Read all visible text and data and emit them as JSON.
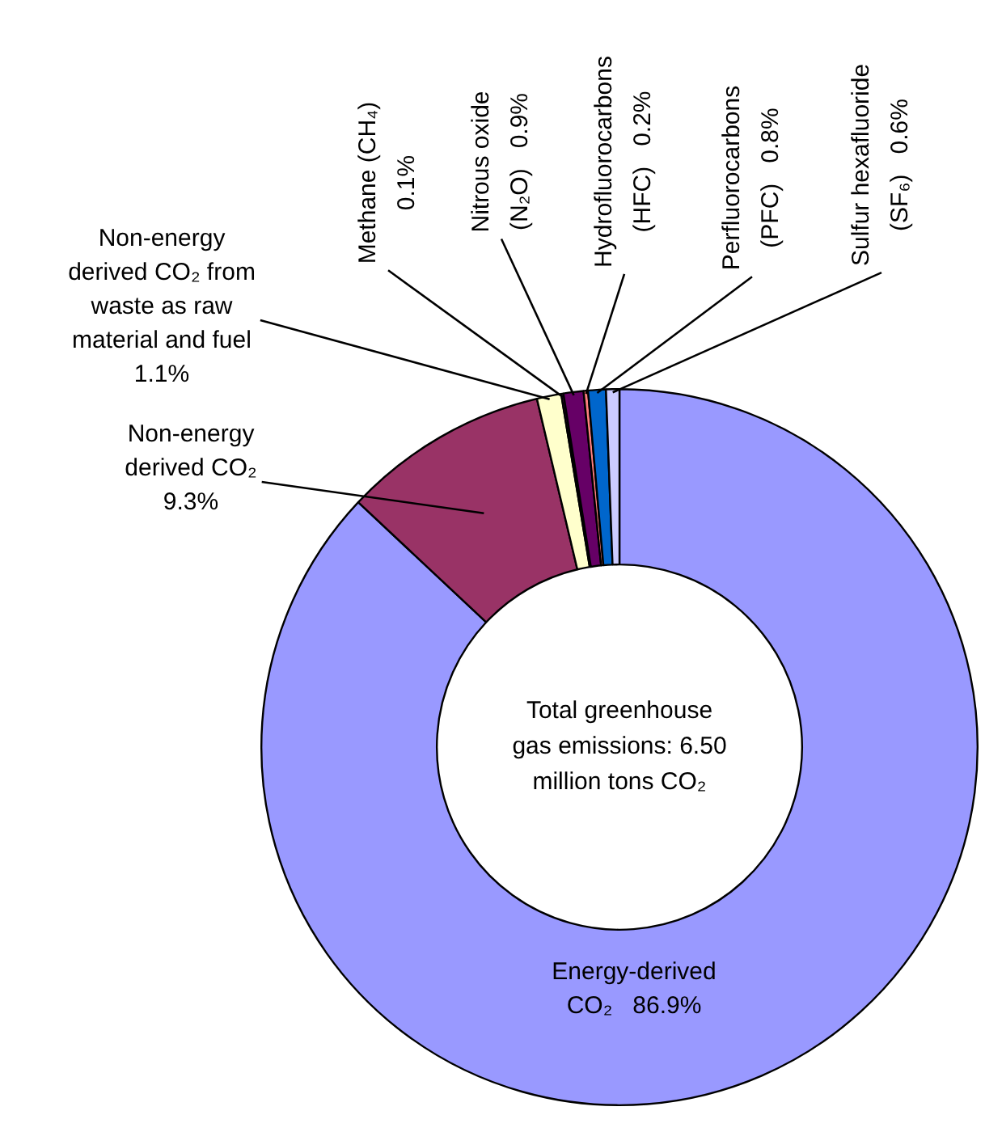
{
  "chart_data": {
    "type": "donut",
    "categories": [
      "Energy-derived CO₂",
      "Non-energy derived CO₂",
      "Non-energy derived CO₂ from waste as raw material and fuel",
      "Methane (CH₄)",
      "Nitrous oxide (N₂O)",
      "Hydrofluorocarbons (HFC)",
      "Perfluorocarbons (PFC)",
      "Sulfur hexafluoride (SF₆)"
    ],
    "values": [
      86.9,
      9.3,
      1.1,
      0.1,
      0.9,
      0.2,
      0.8,
      0.6
    ],
    "value_labels": [
      "86.9%",
      "9.3%",
      "1.1%",
      "0.1%",
      "0.9%",
      "0.2%",
      "0.8%",
      "0.6%"
    ],
    "colors": [
      "#9999ff",
      "#993366",
      "#ffffcc",
      "#800080",
      "#660066",
      "#ff8080",
      "#0066cc",
      "#ccccff"
    ],
    "annotations": [
      "Total greenhouse gas emissions: 6.50 million tons CO₂"
    ],
    "legend": false
  }
}
